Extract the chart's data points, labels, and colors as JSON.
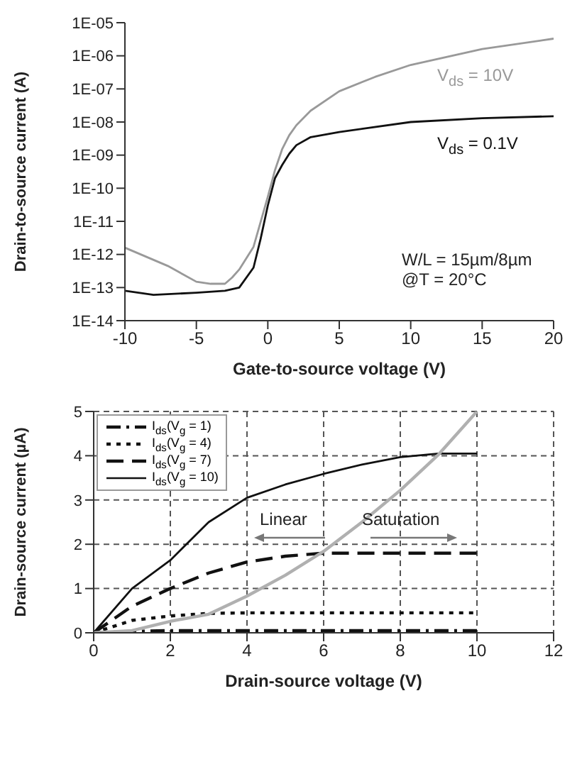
{
  "chart_data": [
    {
      "type": "line",
      "xlabel": "Gate-to-source voltage (V)",
      "ylabel": "Drain-to-source current (A)",
      "log": "y",
      "grid": false,
      "legend": false,
      "xlim": [
        -10,
        20
      ],
      "xticks": [
        -10,
        -5,
        0,
        5,
        10,
        15,
        20
      ],
      "ylim": [
        1e-14,
        1e-05
      ],
      "yticks": [
        {
          "value": 1e-14,
          "label": "1E-14"
        },
        {
          "value": 1e-13,
          "label": "1E-13"
        },
        {
          "value": 1e-12,
          "label": "1E-12"
        },
        {
          "value": 1e-11,
          "label": "1E-11"
        },
        {
          "value": 1e-10,
          "label": "1E-10"
        },
        {
          "value": 1e-09,
          "label": "1E-09"
        },
        {
          "value": 1e-08,
          "label": "1E-08"
        },
        {
          "value": 1e-07,
          "label": "1E-07"
        },
        {
          "value": 1e-06,
          "label": "1E-06"
        },
        {
          "value": 1e-05,
          "label": "1E-05"
        }
      ],
      "annotations": [
        "W/L = 15µm/8µm",
        "@T = 20°C"
      ],
      "series": [
        {
          "name": "V$_{ds}$ = 10V",
          "color": "#999999",
          "line_style": "solid",
          "x": [
            -10,
            -7,
            -5,
            -4,
            -3,
            -2.5,
            -2,
            -1,
            0,
            0.5,
            1,
            1.5,
            2,
            3,
            5,
            7.5,
            10,
            15,
            20
          ],
          "values": [
            1.6e-12,
            4.5e-13,
            1.5e-13,
            1.3e-13,
            1.3e-13,
            2e-13,
            3.5e-13,
            1.7e-12,
            5.5e-11,
            3.5e-10,
            1.5e-09,
            4e-09,
            8e-09,
            2.2e-08,
            8.5e-08,
            2.3e-07,
            5.3e-07,
            1.6e-06,
            3.3e-06
          ]
        },
        {
          "name": "V$_{ds}$ = 0.1V",
          "color": "#111111",
          "line_style": "solid",
          "x": [
            -10,
            -8,
            -5,
            -3,
            -2,
            -1,
            -0.5,
            0,
            0.5,
            1,
            1.5,
            2,
            3,
            5,
            10,
            15,
            20
          ],
          "values": [
            8e-14,
            6e-14,
            7e-14,
            8e-14,
            1e-13,
            4e-13,
            3e-12,
            3e-11,
            2e-10,
            5e-10,
            1.1e-09,
            2e-09,
            3.5e-09,
            5e-09,
            1e-08,
            1.3e-08,
            1.5e-08
          ]
        }
      ]
    },
    {
      "type": "line",
      "xlabel": "Drain-source voltage (V)",
      "ylabel": "Drain-source current (µA)",
      "grid": true,
      "legend": "top left",
      "xlim": [
        0,
        12
      ],
      "xticks": [
        0,
        2,
        4,
        6,
        8,
        10,
        12
      ],
      "ylim": [
        0,
        5
      ],
      "yticks": [
        0,
        1,
        2,
        3,
        4,
        5
      ],
      "annotations": [
        "Linear",
        "Saturation"
      ],
      "series": [
        {
          "name": "I$_{ds}$(V$_{g}$ = 1)",
          "color": "#111111",
          "line_style": "dashdot",
          "x": [
            0,
            1,
            2,
            3,
            4,
            5,
            6,
            7,
            8,
            9,
            10
          ],
          "values": [
            0,
            0.03,
            0.05,
            0.05,
            0.05,
            0.05,
            0.05,
            0.05,
            0.05,
            0.05,
            0.05
          ]
        },
        {
          "name": "I$_{ds}$(V$_{g}$ = 4)",
          "color": "#111111",
          "line_style": "dotted",
          "x": [
            0,
            1,
            2,
            3,
            4,
            5,
            6,
            7,
            8,
            9,
            10
          ],
          "values": [
            0,
            0.28,
            0.38,
            0.44,
            0.45,
            0.45,
            0.45,
            0.45,
            0.45,
            0.45,
            0.45
          ]
        },
        {
          "name": "I$_{ds}$(V$_{g}$ = 7)",
          "color": "#111111",
          "line_style": "dashed",
          "x": [
            0,
            1,
            1.5,
            2,
            3,
            4,
            5,
            6,
            7,
            8,
            9,
            10
          ],
          "values": [
            0,
            0.6,
            0.8,
            1.0,
            1.35,
            1.6,
            1.73,
            1.8,
            1.8,
            1.8,
            1.8,
            1.8
          ]
        },
        {
          "name": "I$_{ds}$(V$_{g}$ = 10)",
          "color": "#111111",
          "line_style": "solid",
          "x": [
            0,
            1,
            2,
            3,
            4,
            5,
            6,
            7,
            8,
            9,
            10
          ],
          "values": [
            0,
            1.0,
            1.64,
            2.5,
            3.05,
            3.35,
            3.59,
            3.8,
            3.97,
            4.05,
            4.05
          ]
        },
        {
          "color": "#b0b0b0",
          "line_style": "solid",
          "x": [
            0,
            1,
            2,
            3,
            4,
            5,
            6,
            7,
            8,
            9,
            10
          ],
          "values": [
            0,
            0.05,
            0.26,
            0.42,
            0.83,
            1.3,
            1.84,
            2.5,
            3.22,
            4.03,
            5.0
          ]
        }
      ]
    }
  ]
}
